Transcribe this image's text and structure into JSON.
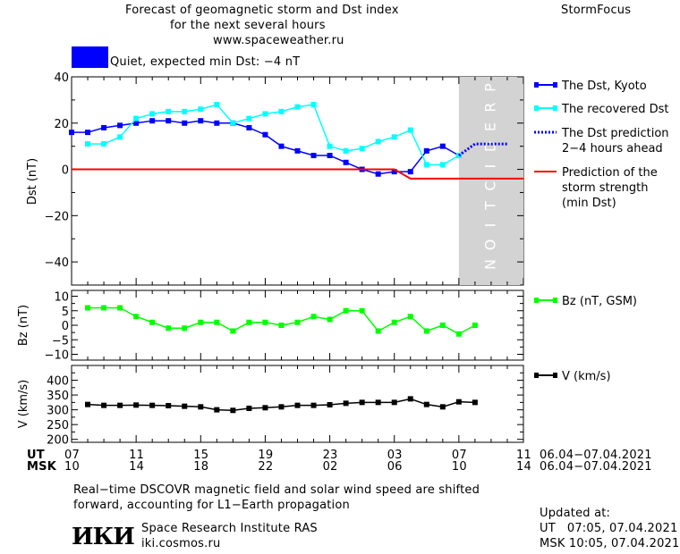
{
  "header": {
    "title_line1": "Forecast of geomagnetic storm and Dst index",
    "title_line2": "for the next several hours",
    "title_line3": "www.spaceweather.ru",
    "brand": "StormFocus",
    "status_text": "Quiet, expected min Dst: −4 nT",
    "status_color": "#0000ff"
  },
  "colors": {
    "dst_kyoto": "#0000ff",
    "dst_recovered": "#00ffff",
    "dst_prediction": "#0000ff",
    "storm_strength": "#ff0000",
    "bz": "#00ff00",
    "v": "#000000",
    "prediction_zone": "#d3d3d3"
  },
  "x_axis": {
    "ut_label": "UT",
    "msk_label": "MSK",
    "ut_ticks": [
      "07",
      "11",
      "15",
      "19",
      "23",
      "03",
      "07",
      "11"
    ],
    "msk_ticks": [
      "10",
      "14",
      "18",
      "22",
      "02",
      "06",
      "10",
      "14"
    ],
    "date_range_ut": "06.04−07.04.2021",
    "date_range_msk": "06.04−07.04.2021"
  },
  "footer": {
    "note_line1": "Real−time DSCOVR magnetic field and solar wind speed are shifted",
    "note_line2": "forward, accounting for L1−Earth propagation",
    "logo_text": "ИКИ",
    "institute": "Space Research Institute RAS",
    "url": "iki.cosmos.ru",
    "updated_label": "Updated at:",
    "updated_ut": "UT   07:05, 07.04.2021",
    "updated_msk": "MSK 10:05, 07.04.2021"
  },
  "chart_data": [
    {
      "type": "line",
      "ylabel": "Dst (nT)",
      "ylim": [
        -50,
        40
      ],
      "yticks": [
        40,
        20,
        0,
        -20,
        -40
      ],
      "xlim": [
        0,
        28
      ],
      "x_unit": "hours since 07 UT 06.04.2021",
      "prediction_label": "PREDICTION",
      "prediction_range": [
        24,
        28
      ],
      "legend_position": "right",
      "series": [
        {
          "name": "The Dst, Kyoto",
          "x": [
            0,
            1,
            2,
            3,
            4,
            5,
            6,
            7,
            8,
            9,
            10,
            11,
            12,
            13,
            14,
            15,
            16,
            17,
            18,
            19,
            20,
            21,
            22,
            23,
            24
          ],
          "y": [
            16,
            16,
            18,
            19,
            20,
            21,
            21,
            20,
            21,
            20,
            20,
            18,
            15,
            10,
            8,
            6,
            6,
            3,
            0,
            -2,
            -1,
            -1,
            8,
            10,
            6
          ]
        },
        {
          "name": "The recovered Dst",
          "x": [
            1,
            2,
            3,
            4,
            5,
            6,
            7,
            8,
            9,
            10,
            11,
            12,
            13,
            14,
            15,
            16,
            17,
            18,
            19,
            20,
            21,
            22,
            23,
            24
          ],
          "y": [
            11,
            11,
            14,
            22,
            24,
            25,
            25,
            26,
            28,
            20,
            22,
            24,
            25,
            27,
            28,
            10,
            8,
            9,
            12,
            14,
            17,
            2,
            2,
            6
          ]
        },
        {
          "name": "The Dst prediction 2−4 hours ahead",
          "x": [
            24,
            25,
            26,
            27
          ],
          "y": [
            6,
            11,
            11,
            11
          ],
          "style": "dotted"
        },
        {
          "name": "Prediction of the storm strength (min Dst)",
          "x": [
            0,
            20,
            21,
            28
          ],
          "y": [
            0,
            0,
            -4,
            -4
          ],
          "style": "step"
        }
      ]
    },
    {
      "type": "line",
      "ylabel": "Bz (nT)",
      "ylim": [
        -12,
        12
      ],
      "yticks": [
        10,
        5,
        0,
        -5,
        -10
      ],
      "tick_labels": [
        "10",
        "5",
        "0",
        "−5",
        "−10"
      ],
      "xlim": [
        0,
        28
      ],
      "legend_position": "right",
      "series": [
        {
          "name": "Bz (nT, GSM)",
          "x": [
            1,
            2,
            3,
            4,
            5,
            6,
            7,
            8,
            9,
            10,
            11,
            12,
            13,
            14,
            15,
            16,
            17,
            18,
            19,
            20,
            21,
            22,
            23,
            24,
            25
          ],
          "y": [
            6,
            6,
            6,
            3,
            1,
            -1,
            -1,
            1,
            1,
            -2,
            1,
            1,
            0,
            1,
            3,
            2,
            5,
            5,
            -2,
            1,
            3,
            -2,
            0,
            -3,
            0
          ]
        }
      ]
    },
    {
      "type": "line",
      "ylabel": "V (km/s)",
      "ylim": [
        190,
        450
      ],
      "yticks": [
        400,
        350,
        300,
        250,
        200
      ],
      "xlim": [
        0,
        28
      ],
      "legend_position": "right",
      "series": [
        {
          "name": "V (km/s)",
          "x": [
            1,
            2,
            3,
            4,
            5,
            6,
            7,
            8,
            9,
            10,
            11,
            12,
            13,
            14,
            15,
            16,
            17,
            18,
            19,
            20,
            21,
            22,
            23,
            24,
            25
          ],
          "y": [
            318,
            315,
            315,
            316,
            315,
            314,
            312,
            310,
            300,
            298,
            305,
            307,
            310,
            315,
            315,
            317,
            322,
            325,
            325,
            325,
            337,
            318,
            310,
            327,
            325
          ]
        }
      ]
    }
  ]
}
